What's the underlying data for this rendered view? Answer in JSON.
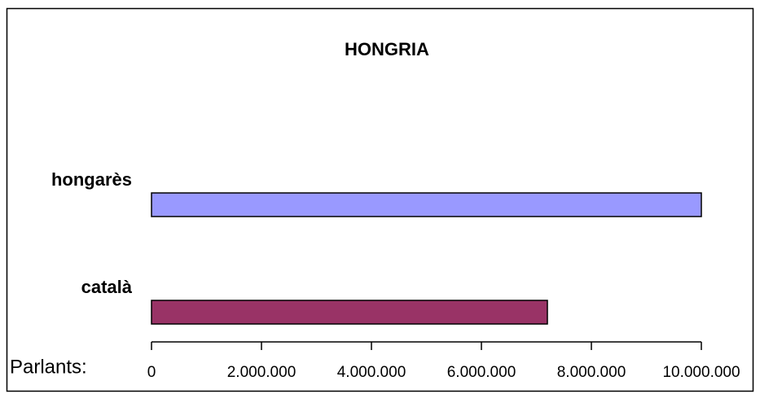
{
  "chart_data": {
    "type": "barh",
    "title": "HONGRIA",
    "xlabel": "Parlants:",
    "categories": [
      "hongarès",
      "català"
    ],
    "series": [
      {
        "name": "hongarès",
        "color": "#9999ff",
        "values": [
          10000000,
          null
        ]
      },
      {
        "name": "català",
        "color": "#993366",
        "values": [
          null,
          7200000
        ]
      }
    ],
    "xlim": [
      0,
      10000000
    ],
    "xticks": [
      0,
      {
        "value": 2000000,
        "label": "2.000.000"
      },
      {
        "value": 4000000,
        "label": "4.000.000"
      },
      {
        "value": 6000000,
        "label": "6.000.000"
      },
      {
        "value": 8000000,
        "label": "8.000.000"
      },
      {
        "value": 10000000,
        "label": "10.000.000"
      }
    ]
  }
}
